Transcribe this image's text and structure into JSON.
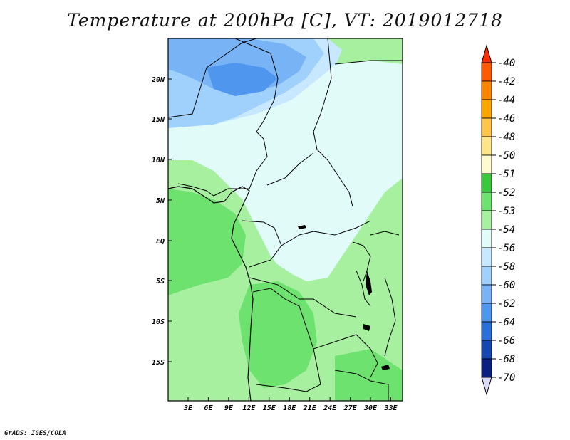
{
  "title": "Temperature at 200hPa [C], VT: 2019012718",
  "footer": "GrADS: IGES/COLA",
  "map": {
    "lat_labels": [
      "20N",
      "15N",
      "10N",
      "5N",
      "EQ",
      "5S",
      "10S",
      "15S"
    ],
    "lon_labels": [
      "3E",
      "6E",
      "9E",
      "12E",
      "15E",
      "18E",
      "21E",
      "24E",
      "27E",
      "30E",
      "33E"
    ]
  },
  "colorbar": {
    "levels": [
      "-40",
      "-42",
      "-44",
      "-46",
      "-48",
      "-50",
      "-51",
      "-52",
      "-53",
      "-54",
      "-56",
      "-58",
      "-60",
      "-62",
      "-64",
      "-66",
      "-68",
      "-70"
    ],
    "colors": [
      "#ff2a00",
      "#ff5a00",
      "#ff8500",
      "#ffa500",
      "#ffc44a",
      "#ffe68a",
      "#fffbd0",
      "#3cc83c",
      "#6ee26e",
      "#a6f0a0",
      "#e0fbf8",
      "#c8e8ff",
      "#a0d0fc",
      "#78b4f5",
      "#4f96ee",
      "#2b70d8",
      "#1448b0",
      "#0a1f80",
      "#dcdcfa"
    ]
  }
}
